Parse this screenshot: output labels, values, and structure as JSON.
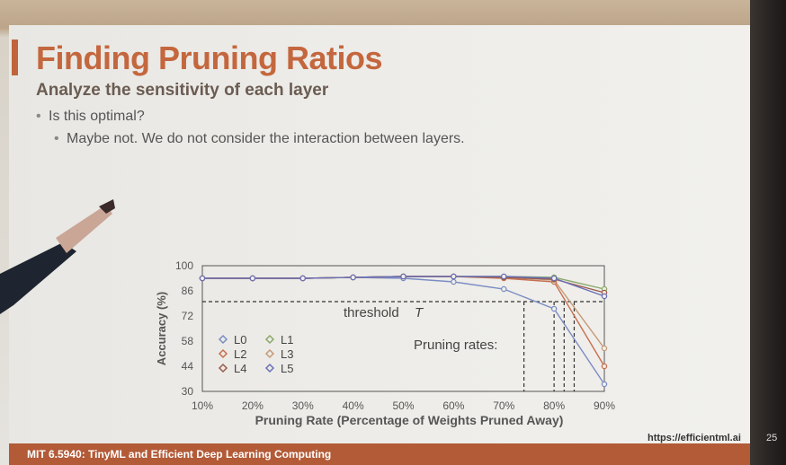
{
  "slide": {
    "title": "Finding Pruning Ratios",
    "subtitle": "Analyze the sensitivity of each layer",
    "bullets": [
      "Is this optimal?",
      "Maybe not. We do not consider the interaction between layers."
    ],
    "footer_left": "MIT 6.5940: TinyML and Efficient Deep Learning Computing",
    "footer_url": "https://efficientml.ai",
    "page_number": "25"
  },
  "chart_annotations": {
    "threshold_label": "threshold",
    "threshold_symbol": "T",
    "pruning_rates_label": "Pruning rates:"
  },
  "colors": {
    "accent": "#c4673e",
    "footer": "#b35a37",
    "L0": "#7b8cc4",
    "L1": "#8aa86a",
    "L2": "#c86e4e",
    "L3": "#c49a78",
    "L4": "#9a5a4a",
    "L5": "#6a70b8"
  },
  "chart_data": {
    "type": "line",
    "xlabel": "Pruning Rate (Percentage of Weights Pruned Away)",
    "ylabel": "Accuracy (%)",
    "x": [
      10,
      20,
      30,
      40,
      50,
      60,
      70,
      80,
      90
    ],
    "x_tick_labels": [
      "10%",
      "20%",
      "30%",
      "40%",
      "50%",
      "60%",
      "70%",
      "80%",
      "90%"
    ],
    "y_ticks": [
      30,
      44,
      58,
      72,
      86,
      100
    ],
    "ylim": [
      30,
      100
    ],
    "xlim": [
      10,
      90
    ],
    "threshold": 80,
    "pruning_rate_markers": [
      74,
      80,
      82,
      84
    ],
    "legend": [
      "L0",
      "L1",
      "L2",
      "L3",
      "L4",
      "L5"
    ],
    "series": [
      {
        "name": "L0",
        "values": [
          93,
          93,
          93,
          93.5,
          93,
          91,
          87,
          76,
          34
        ]
      },
      {
        "name": "L1",
        "values": [
          93,
          93,
          93,
          93.5,
          94,
          94,
          94,
          93.5,
          87
        ]
      },
      {
        "name": "L2",
        "values": [
          93,
          93,
          93,
          93.5,
          94,
          94,
          93,
          91,
          44
        ]
      },
      {
        "name": "L3",
        "values": [
          93,
          93,
          93,
          93.5,
          94,
          94,
          93.5,
          92,
          54
        ]
      },
      {
        "name": "L4",
        "values": [
          93,
          93,
          93,
          93.5,
          94,
          94,
          93.5,
          92.5,
          85
        ]
      },
      {
        "name": "L5",
        "values": [
          93,
          93,
          93,
          93.5,
          94,
          94,
          94,
          93,
          83
        ]
      }
    ]
  }
}
